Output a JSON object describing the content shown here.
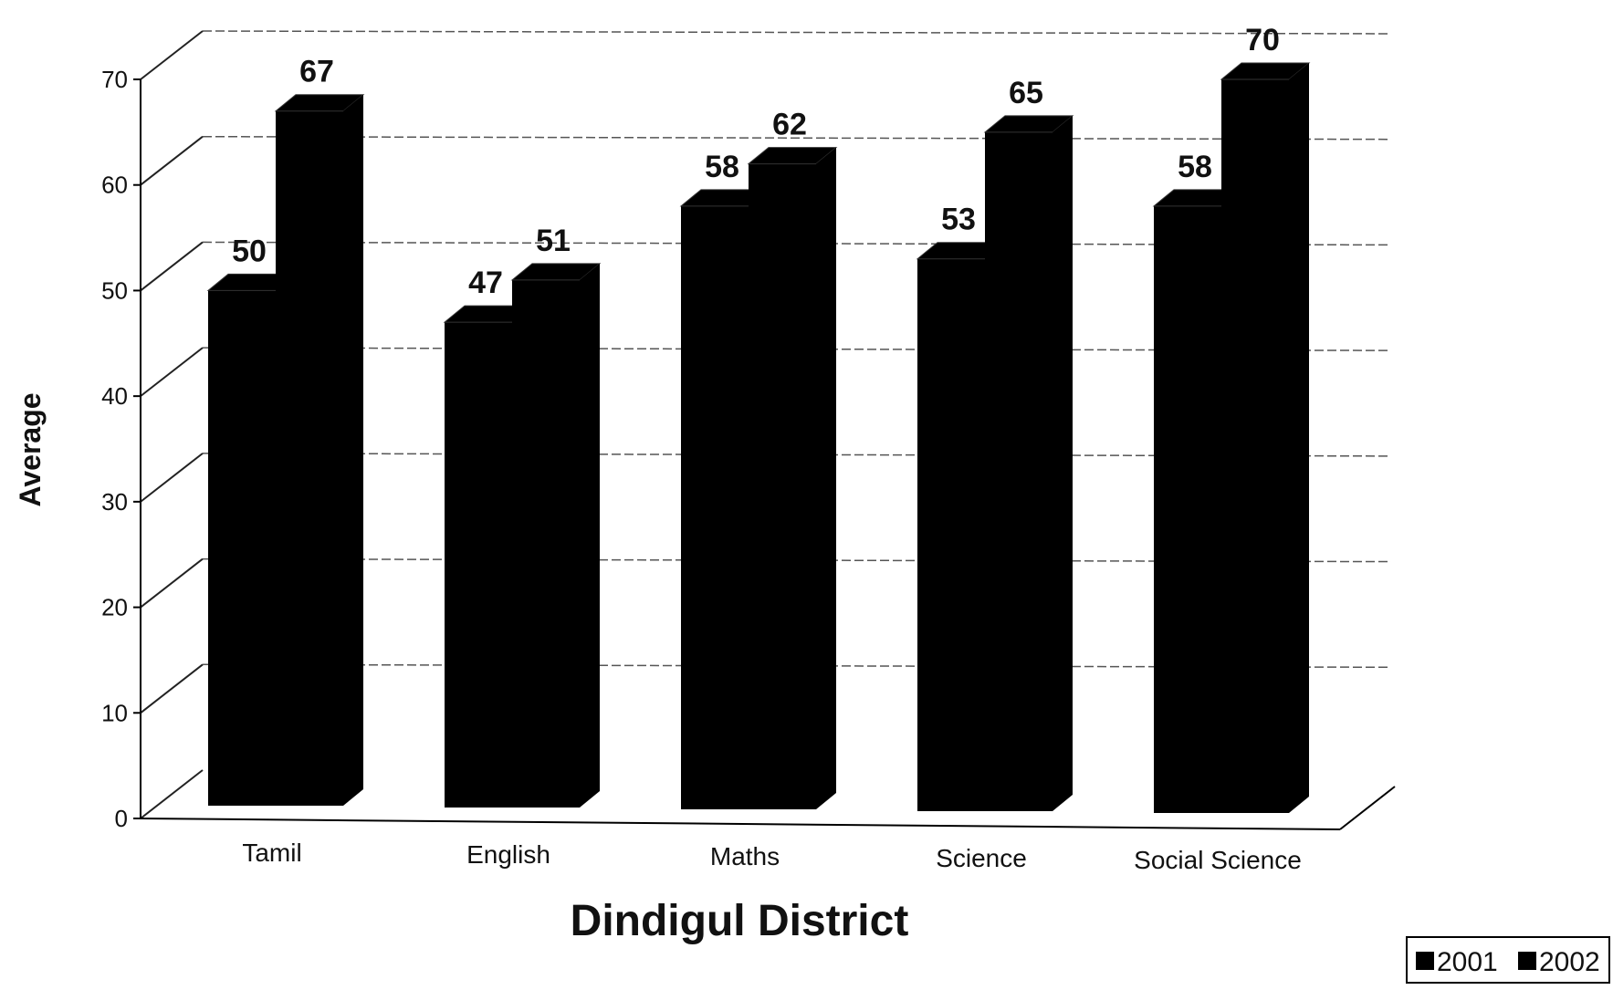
{
  "chart_data": {
    "type": "bar",
    "categories": [
      "Tamil",
      "English",
      "Maths",
      "Science",
      "Social Science"
    ],
    "series": [
      {
        "name": "2001",
        "values": [
          50,
          47,
          58,
          53,
          58
        ]
      },
      {
        "name": "2002",
        "values": [
          67,
          51,
          62,
          65,
          70
        ]
      }
    ],
    "xlabel": "Dindigul District",
    "ylabel": "Average",
    "ylim": [
      0,
      70
    ],
    "yticks": [
      0,
      10,
      20,
      30,
      40,
      50,
      60,
      70
    ],
    "grid": true,
    "legend": "bottom-right",
    "bar_color": "#000000"
  }
}
